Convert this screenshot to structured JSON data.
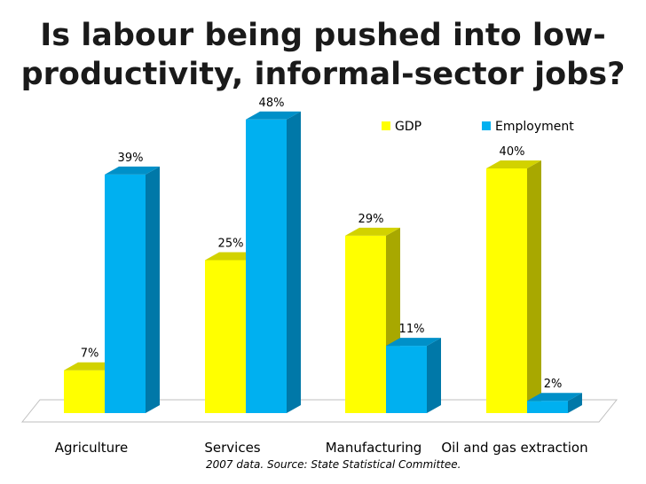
{
  "title_lines": [
    "Is labour being pushed into low-",
    "productivity, informal-sector jobs?"
  ],
  "source_note": "2007 data. Source: State Statistical Committee.",
  "chart_data": {
    "type": "bar",
    "categories": [
      "Agriculture",
      "Services",
      "Manufacturing",
      "Oil and gas extraction"
    ],
    "series": [
      {
        "name": "GDP",
        "values": [
          7,
          25,
          29,
          40
        ],
        "labels": [
          "7%",
          "25%",
          "29%",
          "40%"
        ],
        "color": "#ffff00",
        "side_color": "#a8a800",
        "top_color": "#d2d200"
      },
      {
        "name": "Employment",
        "values": [
          39,
          48,
          11,
          2
        ],
        "labels": [
          "39%",
          "48%",
          "11%",
          "2%"
        ],
        "color": "#00b0f0",
        "side_color": "#0078a8",
        "top_color": "#0090c8"
      }
    ],
    "ylim": [
      0,
      50
    ],
    "legend_position": "top-right",
    "style": "3d-clustered-column"
  }
}
